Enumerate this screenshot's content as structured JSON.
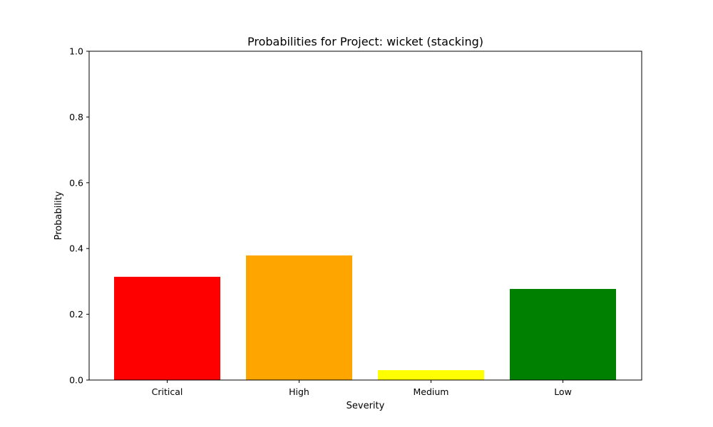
{
  "chart_data": {
    "type": "bar",
    "title": "Probabilities for Project: wicket (stacking)",
    "xlabel": "Severity",
    "ylabel": "Probability",
    "categories": [
      "Critical",
      "High",
      "Medium",
      "Low"
    ],
    "values": [
      0.314,
      0.379,
      0.03,
      0.277
    ],
    "colors": [
      "#ff0000",
      "#ffa500",
      "#ffff00",
      "#008000"
    ],
    "ylim": [
      0,
      1
    ],
    "yticks": [
      "0.0",
      "0.2",
      "0.4",
      "0.6",
      "0.8",
      "1.0"
    ],
    "grid": false,
    "legend": "none"
  }
}
